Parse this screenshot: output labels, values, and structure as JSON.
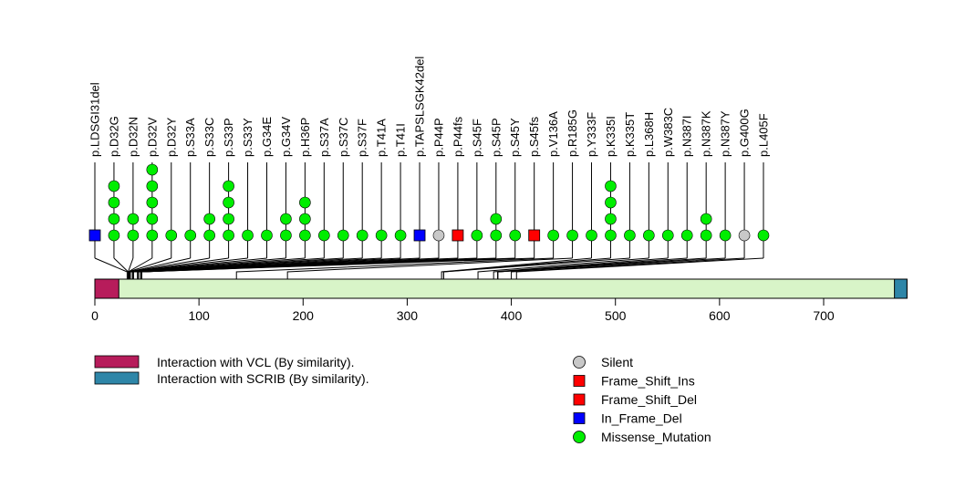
{
  "chart_data": {
    "type": "lollipop",
    "title": "",
    "protein_length": 780,
    "xaxis": {
      "ticks": [
        0,
        100,
        200,
        300,
        400,
        500,
        600,
        700
      ],
      "range": [
        0,
        780
      ]
    },
    "domains": [
      {
        "name": "Interaction with VCL (By similarity).",
        "start": 1,
        "end": 23,
        "color": "#B71C5B"
      },
      {
        "name": "Interaction with SCRIB (By similarity).",
        "start": 769,
        "end": 780,
        "color": "#2E86A8"
      }
    ],
    "mutation_types": [
      {
        "name": "Silent",
        "shape": "circle",
        "color": "#C8C8C8"
      },
      {
        "name": "Frame_Shift_Ins",
        "shape": "square",
        "color": "#FF0000"
      },
      {
        "name": "Frame_Shift_Del",
        "shape": "square",
        "color": "#FF0000"
      },
      {
        "name": "In_Frame_Del",
        "shape": "square",
        "color": "#0000FF"
      },
      {
        "name": "Missense_Mutation",
        "shape": "circle",
        "color": "#00EE00"
      }
    ],
    "mutations": [
      {
        "label": "p.LDSGI31del",
        "position": 31,
        "count": 1,
        "type": "In_Frame_Del"
      },
      {
        "label": "p.D32G",
        "position": 32,
        "count": 4,
        "type": "Missense_Mutation"
      },
      {
        "label": "p.D32N",
        "position": 32,
        "count": 2,
        "type": "Missense_Mutation"
      },
      {
        "label": "p.D32V",
        "position": 32,
        "count": 5,
        "type": "Missense_Mutation"
      },
      {
        "label": "p.D32Y",
        "position": 32,
        "count": 1,
        "type": "Missense_Mutation"
      },
      {
        "label": "p.S33A",
        "position": 33,
        "count": 1,
        "type": "Missense_Mutation"
      },
      {
        "label": "p.S33C",
        "position": 33,
        "count": 2,
        "type": "Missense_Mutation"
      },
      {
        "label": "p.S33P",
        "position": 33,
        "count": 4,
        "type": "Missense_Mutation"
      },
      {
        "label": "p.S33Y",
        "position": 33,
        "count": 1,
        "type": "Missense_Mutation"
      },
      {
        "label": "p.G34E",
        "position": 34,
        "count": 1,
        "type": "Missense_Mutation"
      },
      {
        "label": "p.G34V",
        "position": 34,
        "count": 2,
        "type": "Missense_Mutation"
      },
      {
        "label": "p.H36P",
        "position": 36,
        "count": 3,
        "type": "Missense_Mutation"
      },
      {
        "label": "p.S37A",
        "position": 37,
        "count": 1,
        "type": "Missense_Mutation"
      },
      {
        "label": "p.S37C",
        "position": 37,
        "count": 1,
        "type": "Missense_Mutation"
      },
      {
        "label": "p.S37F",
        "position": 37,
        "count": 1,
        "type": "Missense_Mutation"
      },
      {
        "label": "p.T41A",
        "position": 41,
        "count": 1,
        "type": "Missense_Mutation"
      },
      {
        "label": "p.T41I",
        "position": 41,
        "count": 1,
        "type": "Missense_Mutation"
      },
      {
        "label": "p.TAPSLSGK42del",
        "position": 42,
        "count": 1,
        "type": "In_Frame_Del"
      },
      {
        "label": "p.P44P",
        "position": 44,
        "count": 1,
        "type": "Silent"
      },
      {
        "label": "p.P44fs",
        "position": 44,
        "count": 1,
        "type": "Frame_Shift_Ins"
      },
      {
        "label": "p.S45F",
        "position": 45,
        "count": 1,
        "type": "Missense_Mutation"
      },
      {
        "label": "p.S45P",
        "position": 45,
        "count": 2,
        "type": "Missense_Mutation"
      },
      {
        "label": "p.S45Y",
        "position": 45,
        "count": 1,
        "type": "Missense_Mutation"
      },
      {
        "label": "p.S45fs",
        "position": 45,
        "count": 1,
        "type": "Frame_Shift_Del"
      },
      {
        "label": "p.V136A",
        "position": 136,
        "count": 1,
        "type": "Missense_Mutation"
      },
      {
        "label": "p.R185G",
        "position": 185,
        "count": 1,
        "type": "Missense_Mutation"
      },
      {
        "label": "p.Y333F",
        "position": 333,
        "count": 1,
        "type": "Missense_Mutation"
      },
      {
        "label": "p.K335I",
        "position": 335,
        "count": 4,
        "type": "Missense_Mutation"
      },
      {
        "label": "p.K335T",
        "position": 335,
        "count": 1,
        "type": "Missense_Mutation"
      },
      {
        "label": "p.L368H",
        "position": 368,
        "count": 1,
        "type": "Missense_Mutation"
      },
      {
        "label": "p.W383C",
        "position": 383,
        "count": 1,
        "type": "Missense_Mutation"
      },
      {
        "label": "p.N387I",
        "position": 387,
        "count": 1,
        "type": "Missense_Mutation"
      },
      {
        "label": "p.N387K",
        "position": 387,
        "count": 2,
        "type": "Missense_Mutation"
      },
      {
        "label": "p.N387Y",
        "position": 387,
        "count": 1,
        "type": "Missense_Mutation"
      },
      {
        "label": "p.G400G",
        "position": 400,
        "count": 1,
        "type": "Silent"
      },
      {
        "label": "p.L405F",
        "position": 405,
        "count": 1,
        "type": "Missense_Mutation"
      }
    ],
    "protein_bar_color": "#D8F4C8",
    "legend": {
      "domains_placement": "bottom-left",
      "types_placement": "bottom-center-right"
    }
  }
}
